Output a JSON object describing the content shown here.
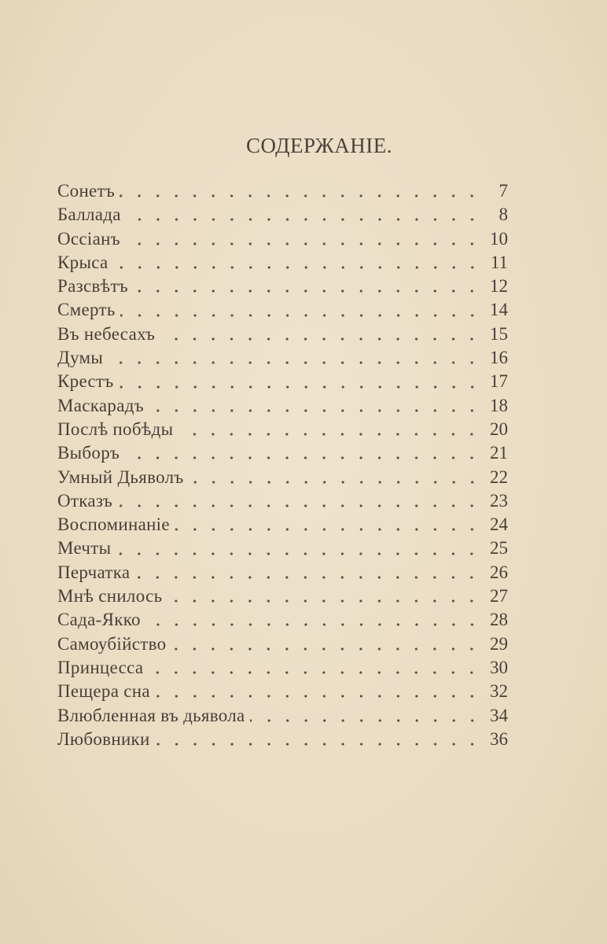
{
  "title": "СОДЕРЖАНІЕ.",
  "entries": [
    {
      "label": "Сонетъ",
      "page": "7"
    },
    {
      "label": "Баллада",
      "page": "8"
    },
    {
      "label": "Оссіанъ",
      "page": "10"
    },
    {
      "label": "Крыса",
      "page": "11"
    },
    {
      "label": "Разсвѣтъ",
      "page": "12"
    },
    {
      "label": "Смерть",
      "page": "14"
    },
    {
      "label": "Въ небесахъ",
      "page": "15"
    },
    {
      "label": "Думы",
      "page": "16"
    },
    {
      "label": "Крестъ",
      "page": "17"
    },
    {
      "label": "Маскарадъ",
      "page": "18"
    },
    {
      "label": "Послѣ побѣды",
      "page": "20"
    },
    {
      "label": "Выборъ",
      "page": "21"
    },
    {
      "label": "Умный Дьяволъ",
      "page": "22"
    },
    {
      "label": "Отказъ",
      "page": "23"
    },
    {
      "label": "Воспоминаніе",
      "page": "24"
    },
    {
      "label": "Мечты",
      "page": "25"
    },
    {
      "label": "Перчатка",
      "page": "26"
    },
    {
      "label": "Мнѣ снилось",
      "page": "27"
    },
    {
      "label": "Сада-Якко",
      "page": "28"
    },
    {
      "label": "Самоубійство",
      "page": "29"
    },
    {
      "label": "Принцесса",
      "page": "30"
    },
    {
      "label": "Пещера сна",
      "page": "32"
    },
    {
      "label": "Влюбленная въ дьявола",
      "page": "34"
    },
    {
      "label": "Любовники",
      "page": "36"
    }
  ]
}
